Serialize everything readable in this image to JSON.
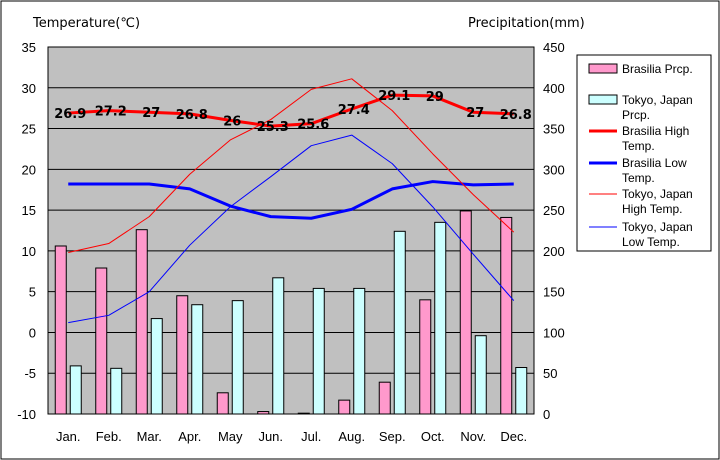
{
  "chart_data": {
    "type": "bar",
    "categories": [
      "Jan.",
      "Feb.",
      "Mar.",
      "Apr.",
      "May",
      "Jun.",
      "Jul.",
      "Aug.",
      "Sep.",
      "Oct.",
      "Nov.",
      "Dec."
    ],
    "left_axis": {
      "label": "Temperature(℃)",
      "ylim": [
        -10,
        35
      ],
      "ticks": [
        -10,
        -5,
        0,
        5,
        10,
        15,
        20,
        25,
        30,
        35
      ]
    },
    "right_axis": {
      "label": "Precipitation(mm)",
      "ylim": [
        0,
        450
      ],
      "ticks": [
        0,
        50,
        100,
        150,
        200,
        250,
        300,
        350,
        400,
        450
      ]
    },
    "grid": true,
    "legend_position": "right",
    "series": [
      {
        "name": "Brasilia Prcp.",
        "kind": "bar",
        "axis": "right",
        "color": "#ff99cc",
        "values": [
          206,
          179,
          226,
          145,
          26,
          3,
          1,
          17,
          39,
          140,
          249,
          241
        ]
      },
      {
        "name": "Tokyo, Japan Prcp.",
        "kind": "bar",
        "axis": "right",
        "color": "#ccffff",
        "values": [
          59,
          56,
          117,
          134,
          139,
          167,
          154,
          154,
          224,
          235,
          96,
          57
        ]
      },
      {
        "name": "Brasilia High Temp.",
        "kind": "line",
        "axis": "left",
        "color": "#ff0000",
        "width": 3,
        "values": [
          26.9,
          27.2,
          27.0,
          26.8,
          26.0,
          25.3,
          25.6,
          27.4,
          29.1,
          29.0,
          27.0,
          26.8
        ],
        "data_labels": [
          "26.9",
          "27.2",
          "27",
          "26.8",
          "26",
          "25.3",
          "25.6",
          "27.4",
          "29.1",
          "29",
          "27",
          "26.8"
        ]
      },
      {
        "name": "Brasilia Low Temp.",
        "kind": "line",
        "axis": "left",
        "color": "#0000ff",
        "width": 3,
        "values": [
          18.2,
          18.2,
          18.2,
          17.6,
          15.5,
          14.2,
          14.0,
          15.1,
          17.6,
          18.5,
          18.1,
          18.2
        ]
      },
      {
        "name": "Tokyo, Japan High Temp.",
        "kind": "line",
        "axis": "left",
        "color": "#ff0000",
        "width": 1,
        "values": [
          9.8,
          10.9,
          14.2,
          19.4,
          23.6,
          26.1,
          29.8,
          31.1,
          27.2,
          21.9,
          16.9,
          12.3
        ]
      },
      {
        "name": "Tokyo, Japan Low Temp.",
        "kind": "line",
        "axis": "left",
        "color": "#0000ff",
        "width": 1,
        "values": [
          1.2,
          2.1,
          5.0,
          10.7,
          15.4,
          19.1,
          22.9,
          24.2,
          20.7,
          15.4,
          9.6,
          3.9
        ]
      }
    ],
    "legend": [
      {
        "key": "bar-pink",
        "label": "Brasilia Prcp."
      },
      {
        "key": "bar-cyan",
        "label": "Tokyo, Japan Prcp."
      },
      {
        "key": "line-red-thick",
        "label": "Brasilia High Temp."
      },
      {
        "key": "line-blue-thick",
        "label": "Brasilia Low Temp."
      },
      {
        "key": "line-red-thin",
        "label": "Tokyo, Japan High Temp."
      },
      {
        "key": "line-blue-thin",
        "label": "Tokyo, Japan Low Temp."
      }
    ],
    "colors": {
      "plot_background": "#c0c0c0",
      "gridline": "#000000"
    }
  }
}
